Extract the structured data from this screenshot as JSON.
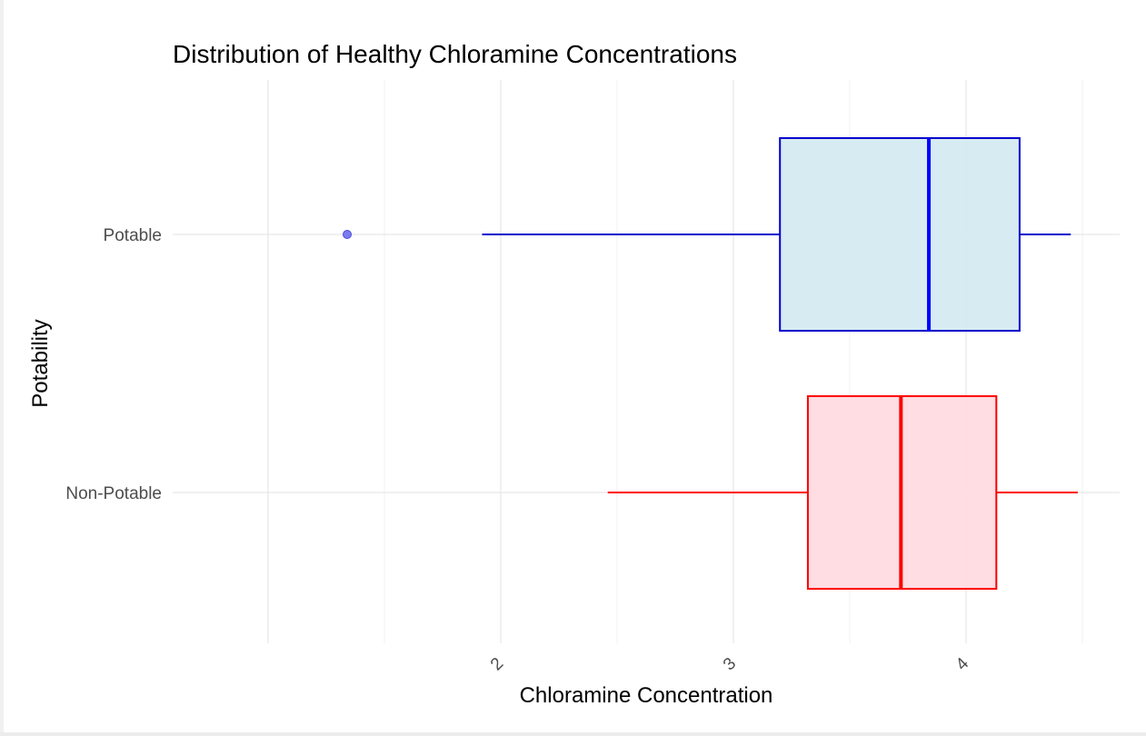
{
  "chart_data": {
    "type": "boxplot",
    "orientation": "horizontal",
    "title": "Distribution of Healthy Chloramine Concentrations",
    "xlabel": "Chloramine Concentration",
    "ylabel": "Potability",
    "xlim": [
      0.59,
      4.66
    ],
    "x_ticks": [
      2,
      3,
      4
    ],
    "grid": true,
    "categories": [
      "Non-Potable",
      "Potable"
    ],
    "series": [
      {
        "category": "Non-Potable",
        "whisker_low": 2.46,
        "q1": 3.32,
        "median": 3.72,
        "q3": 4.13,
        "whisker_high": 4.48,
        "outliers": [],
        "fill": "#ffdbe2",
        "line": "#ff0000"
      },
      {
        "category": "Potable",
        "whisker_low": 1.92,
        "q1": 3.2,
        "median": 3.84,
        "q3": 4.23,
        "whisker_high": 4.45,
        "outliers": [
          1.34
        ],
        "fill": "#d5eaf2",
        "line": "#0000cc"
      }
    ]
  }
}
